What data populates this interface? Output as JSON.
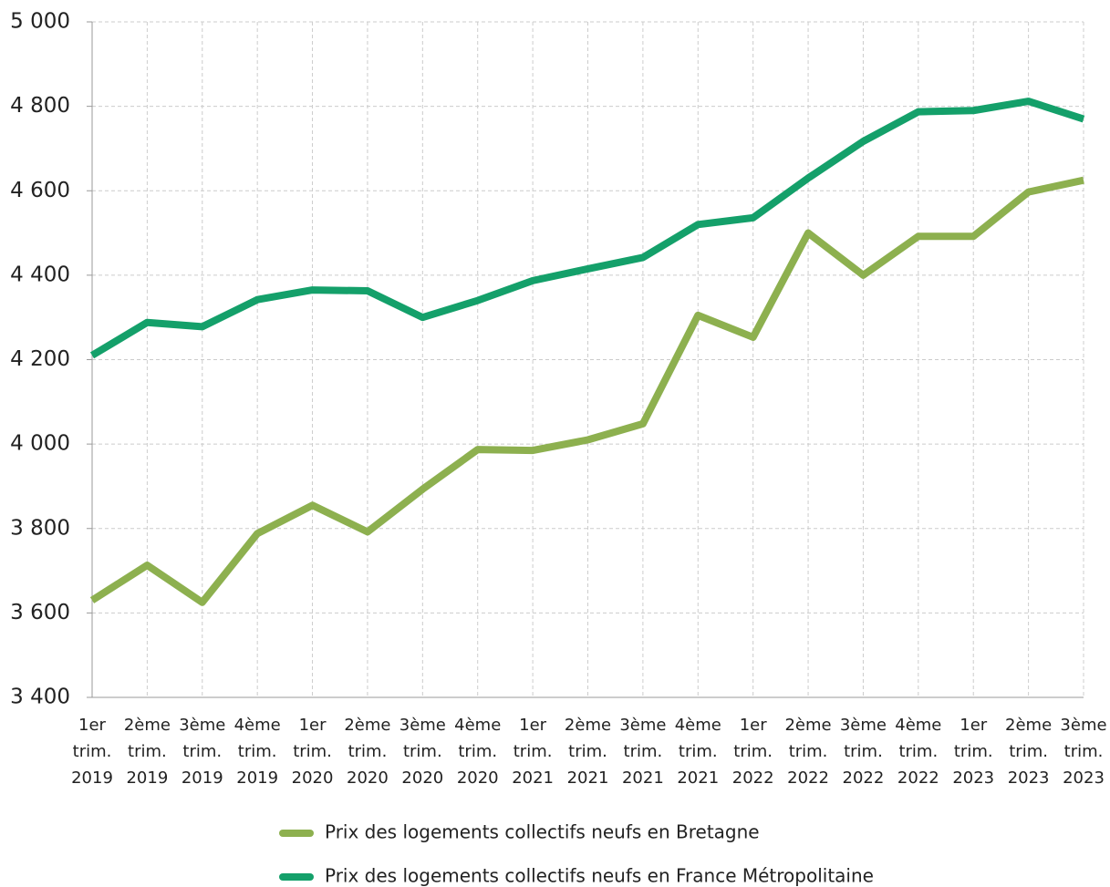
{
  "chart_data": {
    "type": "line",
    "categories": [
      [
        "1er",
        "trim.",
        "2019"
      ],
      [
        "2ème",
        "trim.",
        "2019"
      ],
      [
        "3ème",
        "trim.",
        "2019"
      ],
      [
        "4ème",
        "trim.",
        "2019"
      ],
      [
        "1er",
        "trim.",
        "2020"
      ],
      [
        "2ème",
        "trim.",
        "2020"
      ],
      [
        "3ème",
        "trim.",
        "2020"
      ],
      [
        "4ème",
        "trim.",
        "2020"
      ],
      [
        "1er",
        "trim.",
        "2021"
      ],
      [
        "2ème",
        "trim.",
        "2021"
      ],
      [
        "3ème",
        "trim.",
        "2021"
      ],
      [
        "4ème",
        "trim.",
        "2021"
      ],
      [
        "1er",
        "trim.",
        "2022"
      ],
      [
        "2ème",
        "trim.",
        "2022"
      ],
      [
        "3ème",
        "trim.",
        "2022"
      ],
      [
        "4ème",
        "trim.",
        "2022"
      ],
      [
        "1er",
        "trim.",
        "2023"
      ],
      [
        "2ème",
        "trim.",
        "2023"
      ],
      [
        "3ème",
        "trim.",
        "2023"
      ]
    ],
    "series": [
      {
        "name": "Prix des logements collectifs neufs en Bretagne",
        "color": "#8db04f",
        "values": [
          3630,
          3713,
          3625,
          3788,
          3855,
          3792,
          3893,
          3987,
          3985,
          4010,
          4048,
          4305,
          4253,
          4500,
          4400,
          4492,
          4492,
          4597,
          4625
        ]
      },
      {
        "name": "Prix des logements collectifs neufs en France Métropolitaine",
        "color": "#14a06a",
        "values": [
          4210,
          4288,
          4278,
          4342,
          4365,
          4363,
          4300,
          4340,
          4387,
          4415,
          4442,
          4520,
          4536,
          4630,
          4717,
          4787,
          4790,
          4812,
          4770
        ]
      }
    ],
    "ylim": [
      3400,
      5000
    ],
    "yticks": [
      {
        "value": 3400,
        "label": "3 400"
      },
      {
        "value": 3600,
        "label": "3 600"
      },
      {
        "value": 3800,
        "label": "3 800"
      },
      {
        "value": 4000,
        "label": "4 000"
      },
      {
        "value": 4200,
        "label": "4 200"
      },
      {
        "value": 4400,
        "label": "4 400"
      },
      {
        "value": 4600,
        "label": "4 600"
      },
      {
        "value": 4800,
        "label": "4 800"
      },
      {
        "value": 5000,
        "label": "5 000"
      }
    ],
    "grid": true,
    "legend": "bottom"
  }
}
